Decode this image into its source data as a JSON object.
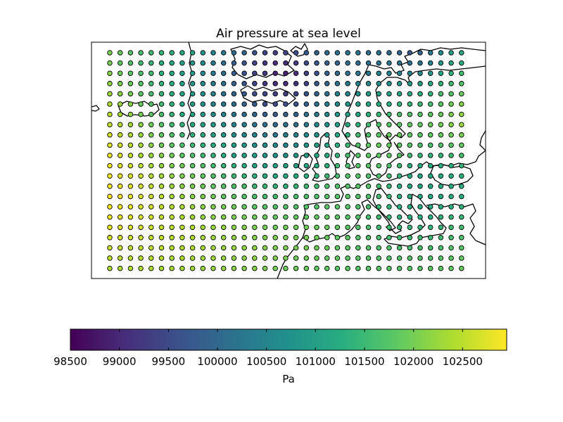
{
  "chart_data": {
    "type": "scatter",
    "title": "Air pressure at sea level",
    "xlabel": "",
    "ylabel": "",
    "colormap": "viridis",
    "grid": false,
    "colorbar": {
      "label": "Pa",
      "orientation": "horizontal",
      "position": "bottom",
      "vmin": 98500,
      "vmax": 102950,
      "ticks": [
        98500,
        99000,
        99500,
        100000,
        100500,
        101000,
        101500,
        102000,
        102500
      ],
      "tick_labels": [
        "98500",
        "99000",
        "99500",
        "100000",
        "100500",
        "101000",
        "101500",
        "102000",
        "102500"
      ]
    },
    "grid_shape": {
      "rows": 22,
      "cols": 35
    },
    "values": [
      [
        102050,
        101900,
        101750,
        101600,
        101500,
        101400,
        101300,
        101200,
        101050,
        100800,
        100550,
        100300,
        100050,
        99950,
        99650,
        99400,
        99300,
        99400,
        99600,
        99750,
        99900,
        100050,
        100150,
        100200,
        100200,
        100150,
        100100,
        100050,
        99900,
        99700,
        99900,
        100300,
        100650,
        100950,
        101100
      ],
      [
        102000,
        101850,
        101700,
        101550,
        101400,
        101300,
        101200,
        101050,
        100850,
        100600,
        100300,
        100050,
        99850,
        99650,
        99400,
        99200,
        99050,
        99100,
        99300,
        99500,
        99700,
        99850,
        99950,
        100050,
        100100,
        100150,
        100150,
        100200,
        100150,
        100100,
        100200,
        100500,
        100850,
        101100,
        101250
      ],
      [
        102100,
        101950,
        101800,
        101650,
        101500,
        101350,
        101200,
        101050,
        100850,
        100600,
        100300,
        100050,
        99800,
        99600,
        99400,
        99200,
        98950,
        98900,
        99050,
        99350,
        99600,
        99850,
        100000,
        100150,
        100250,
        100300,
        100400,
        100450,
        100500,
        100550,
        100600,
        100850,
        101100,
        101350,
        101500
      ],
      [
        102200,
        102050,
        101900,
        101750,
        101550,
        101400,
        101250,
        101050,
        100850,
        100650,
        100350,
        100100,
        99850,
        99650,
        99450,
        99250,
        99100,
        99050,
        99150,
        99400,
        99700,
        99950,
        100150,
        100300,
        100450,
        100550,
        100650,
        100750,
        100850,
        100900,
        101000,
        101150,
        101400,
        101550,
        101700
      ],
      [
        102300,
        102150,
        102000,
        101800,
        101600,
        101450,
        101300,
        101100,
        100900,
        100700,
        100450,
        100200,
        99950,
        99750,
        99550,
        99400,
        99300,
        99300,
        99400,
        99650,
        99900,
        100150,
        100400,
        100550,
        100700,
        100850,
        100950,
        101050,
        101150,
        101200,
        101300,
        101400,
        101600,
        101750,
        101900
      ],
      [
        102400,
        102250,
        102100,
        101900,
        101700,
        101550,
        101350,
        101150,
        101000,
        100800,
        100550,
        100300,
        100100,
        99900,
        99750,
        99600,
        99550,
        99600,
        99700,
        99900,
        100150,
        100400,
        100600,
        100800,
        100950,
        101100,
        101200,
        101300,
        101400,
        101450,
        101500,
        101600,
        101800,
        101950,
        102100
      ],
      [
        102500,
        102350,
        102200,
        102000,
        101800,
        101650,
        101450,
        101250,
        101100,
        100900,
        100700,
        100500,
        100300,
        100100,
        99950,
        99850,
        99800,
        99850,
        99950,
        100150,
        100350,
        100600,
        100800,
        101000,
        101150,
        101350,
        101450,
        101550,
        101650,
        101700,
        101750,
        101800,
        101900,
        102050,
        102200
      ],
      [
        102550,
        102450,
        102300,
        102150,
        101950,
        101750,
        101550,
        101400,
        101200,
        101050,
        100900,
        100700,
        100500,
        100350,
        100200,
        100100,
        100050,
        100100,
        100200,
        100350,
        100550,
        100800,
        101000,
        101200,
        101350,
        101550,
        101650,
        101750,
        101800,
        101850,
        101850,
        101900,
        102000,
        102100,
        102250
      ],
      [
        102650,
        102550,
        102400,
        102250,
        102050,
        101850,
        101700,
        101500,
        101350,
        101200,
        101050,
        100900,
        100750,
        100600,
        100450,
        100350,
        100300,
        100350,
        100450,
        100600,
        100750,
        100950,
        101150,
        101350,
        101550,
        101700,
        101800,
        101900,
        101900,
        101850,
        101800,
        101850,
        101900,
        101950,
        102050
      ],
      [
        102750,
        102650,
        102500,
        102350,
        102150,
        101950,
        101800,
        101650,
        101500,
        101350,
        101200,
        101100,
        100950,
        100850,
        100700,
        100600,
        100550,
        100550,
        100650,
        100800,
        100950,
        101100,
        101300,
        101500,
        101700,
        101850,
        101900,
        101900,
        101850,
        101750,
        101650,
        101650,
        101700,
        101750,
        101850
      ],
      [
        102800,
        102700,
        102550,
        102400,
        102250,
        102100,
        101950,
        101800,
        101650,
        101500,
        101400,
        101300,
        101150,
        101050,
        100950,
        100850,
        100800,
        100800,
        100850,
        100950,
        101100,
        101250,
        101400,
        101600,
        101750,
        101850,
        101850,
        101800,
        101700,
        101550,
        101450,
        101400,
        101450,
        101500,
        101600
      ],
      [
        102850,
        102750,
        102650,
        102500,
        102350,
        102200,
        102050,
        101950,
        101800,
        101700,
        101550,
        101450,
        101350,
        101250,
        101150,
        101050,
        101000,
        101000,
        101050,
        101150,
        101250,
        101350,
        101500,
        101650,
        101750,
        101800,
        101750,
        101650,
        101500,
        101350,
        101250,
        101200,
        101250,
        101300,
        101400
      ],
      [
        102900,
        102800,
        102700,
        102600,
        102450,
        102300,
        102200,
        102050,
        101950,
        101850,
        101700,
        101600,
        101500,
        101450,
        101350,
        101250,
        101200,
        101200,
        101250,
        101300,
        101400,
        101500,
        101600,
        101700,
        101750,
        101700,
        101650,
        101550,
        101400,
        101250,
        101150,
        101150,
        101200,
        101250,
        101350
      ],
      [
        102900,
        102850,
        102750,
        102650,
        102550,
        102400,
        102300,
        102150,
        102050,
        101950,
        101850,
        101750,
        101650,
        101600,
        101500,
        101450,
        101400,
        101400,
        101450,
        101500,
        101550,
        101650,
        101700,
        101750,
        101750,
        101700,
        101600,
        101450,
        101300,
        101200,
        101150,
        101150,
        101200,
        101250,
        101300
      ],
      [
        102950,
        102850,
        102800,
        102700,
        102600,
        102500,
        102350,
        102250,
        102150,
        102050,
        101950,
        101850,
        101800,
        101700,
        101650,
        101600,
        101550,
        101550,
        101600,
        101650,
        101700,
        101750,
        101750,
        101750,
        101700,
        101650,
        101550,
        101450,
        101300,
        101200,
        101150,
        101150,
        101200,
        101250,
        101300
      ],
      [
        102900,
        102850,
        102800,
        102700,
        102650,
        102550,
        102450,
        102350,
        102250,
        102150,
        102050,
        102000,
        101950,
        101850,
        101800,
        101750,
        101700,
        101700,
        101700,
        101750,
        101750,
        101800,
        101800,
        101750,
        101700,
        101600,
        101500,
        101400,
        101300,
        101250,
        101200,
        101200,
        101250,
        101300,
        101350
      ],
      [
        102850,
        102800,
        102750,
        102700,
        102650,
        102550,
        102500,
        102400,
        102300,
        102250,
        102150,
        102100,
        102050,
        102000,
        101950,
        101900,
        101850,
        101850,
        101850,
        101850,
        101850,
        101850,
        101800,
        101750,
        101700,
        101600,
        101500,
        101450,
        101350,
        101300,
        101300,
        101300,
        101350,
        101400,
        101450
      ],
      [
        102800,
        102750,
        102700,
        102650,
        102600,
        102550,
        102500,
        102450,
        102400,
        102300,
        102250,
        102200,
        102150,
        102100,
        102050,
        102000,
        101950,
        101950,
        101950,
        101950,
        101900,
        101900,
        101850,
        101800,
        101700,
        101650,
        101550,
        101500,
        101450,
        101400,
        101400,
        101400,
        101450,
        101500,
        101550
      ],
      [
        102700,
        102700,
        102650,
        102600,
        102550,
        102550,
        102500,
        102450,
        102400,
        102350,
        102300,
        102250,
        102200,
        102150,
        102100,
        102050,
        102050,
        102000,
        102000,
        102000,
        101950,
        101900,
        101850,
        101800,
        101750,
        101700,
        101650,
        101600,
        101550,
        101500,
        101500,
        101500,
        101550,
        101600,
        101650
      ],
      [
        102600,
        102600,
        102550,
        102550,
        102500,
        102500,
        102450,
        102450,
        102400,
        102350,
        102300,
        102250,
        102250,
        102200,
        102150,
        102100,
        102050,
        102050,
        102000,
        102000,
        101950,
        101900,
        101850,
        101800,
        101750,
        101750,
        101700,
        101650,
        101650,
        101600,
        101600,
        101600,
        101650,
        101700,
        101750
      ],
      [
        102500,
        102500,
        102500,
        102450,
        102450,
        102450,
        102400,
        102400,
        102350,
        102300,
        102300,
        102250,
        102200,
        102150,
        102150,
        102100,
        102050,
        102000,
        101950,
        101950,
        101900,
        101850,
        101850,
        101800,
        101800,
        101750,
        101750,
        101700,
        101700,
        101700,
        101700,
        101700,
        101750,
        101800,
        101850
      ],
      [
        102400,
        102400,
        102400,
        102400,
        102400,
        102350,
        102350,
        102300,
        102300,
        102250,
        102250,
        102200,
        102150,
        102100,
        102100,
        102050,
        102000,
        101950,
        101950,
        101900,
        101850,
        101850,
        101800,
        101800,
        101750,
        101750,
        101750,
        101750,
        101750,
        101750,
        101750,
        101800,
        101800,
        101850,
        101900
      ]
    ]
  }
}
